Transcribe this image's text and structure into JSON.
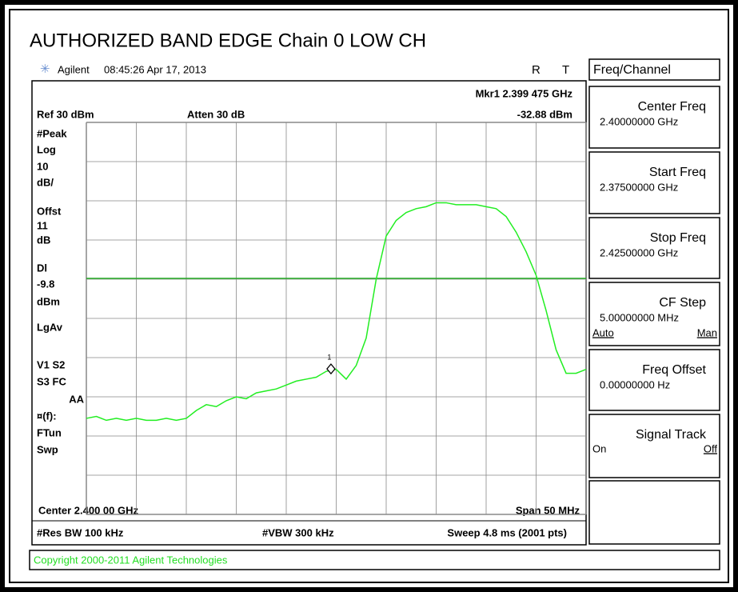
{
  "title": "AUTHORIZED BAND EDGE Chain 0 LOW CH",
  "header": {
    "brand": "Agilent",
    "datetime": "08:45:26  Apr 17, 2013",
    "flags": [
      "R",
      "T"
    ]
  },
  "marker": {
    "label": "Mkr1  2.399 475 GHz",
    "level": "-32.88 dBm",
    "number": "1",
    "freq": 2.399475,
    "value": -32.88
  },
  "settings": {
    "ref": "Ref 30 dBm",
    "atten": "Atten 30 dB"
  },
  "left_labels": [
    "#Peak",
    "Log",
    "10",
    "dB/",
    "Offst",
    "11",
    "dB",
    "Dl",
    "-9.8",
    "dBm",
    "LgAv",
    "V1  S2",
    "S3  FC",
    "AA",
    "¤(f):",
    "FTun",
    "Swp"
  ],
  "footer": {
    "center": "Center 2.400 00 GHz",
    "span": "Span 50 MHz",
    "rbw": "#Res BW 100 kHz",
    "vbw": "#VBW 300 kHz",
    "sweep": "Sweep 4.8 ms (2001 pts)"
  },
  "menu": {
    "title": "Freq/Channel",
    "keys": [
      {
        "label": "Center Freq",
        "value": "2.40000000 GHz"
      },
      {
        "label": "Start Freq",
        "value": "2.37500000 GHz"
      },
      {
        "label": "Stop Freq",
        "value": "2.42500000 GHz"
      },
      {
        "label": "CF Step",
        "value": "5.00000000 MHz",
        "options": [
          "Auto",
          "Man"
        ]
      },
      {
        "label": "Freq Offset",
        "value": "0.00000000  Hz"
      },
      {
        "label": "Signal Track",
        "options": [
          "On",
          "Off"
        ]
      },
      {}
    ]
  },
  "copyright": "Copyright 2000-2011 Agilent Technologies",
  "trace": {
    "xlim": [
      2.375,
      2.425
    ],
    "ylim": [
      -70,
      30
    ],
    "display_line": -9.8,
    "color": "#22ee22",
    "x": [
      2.375,
      2.376,
      2.377,
      2.378,
      2.379,
      2.38,
      2.381,
      2.382,
      2.383,
      2.384,
      2.385,
      2.386,
      2.387,
      2.388,
      2.389,
      2.39,
      2.391,
      2.392,
      2.393,
      2.394,
      2.395,
      2.396,
      2.397,
      2.398,
      2.399,
      2.4,
      2.401,
      2.402,
      2.403,
      2.404,
      2.405,
      2.406,
      2.407,
      2.408,
      2.409,
      2.41,
      2.411,
      2.412,
      2.413,
      2.414,
      2.415,
      2.416,
      2.417,
      2.418,
      2.419,
      2.42,
      2.421,
      2.422,
      2.423,
      2.424,
      2.425
    ],
    "values": [
      -45.5,
      -45,
      -46,
      -45.5,
      -46,
      -45.5,
      -46,
      -46,
      -45.5,
      -46,
      -45.5,
      -43.5,
      -42,
      -42.5,
      -41,
      -40,
      -40.5,
      -39,
      -38.5,
      -38,
      -37,
      -36,
      -35.5,
      -35,
      -33.5,
      -33,
      -35.5,
      -32,
      -25,
      -10,
      1,
      5,
      7,
      8,
      8.5,
      9.5,
      9.5,
      9,
      9,
      9,
      8.5,
      8,
      6,
      2,
      -3,
      -9,
      -18,
      -28,
      -34,
      -34,
      -33
    ]
  }
}
